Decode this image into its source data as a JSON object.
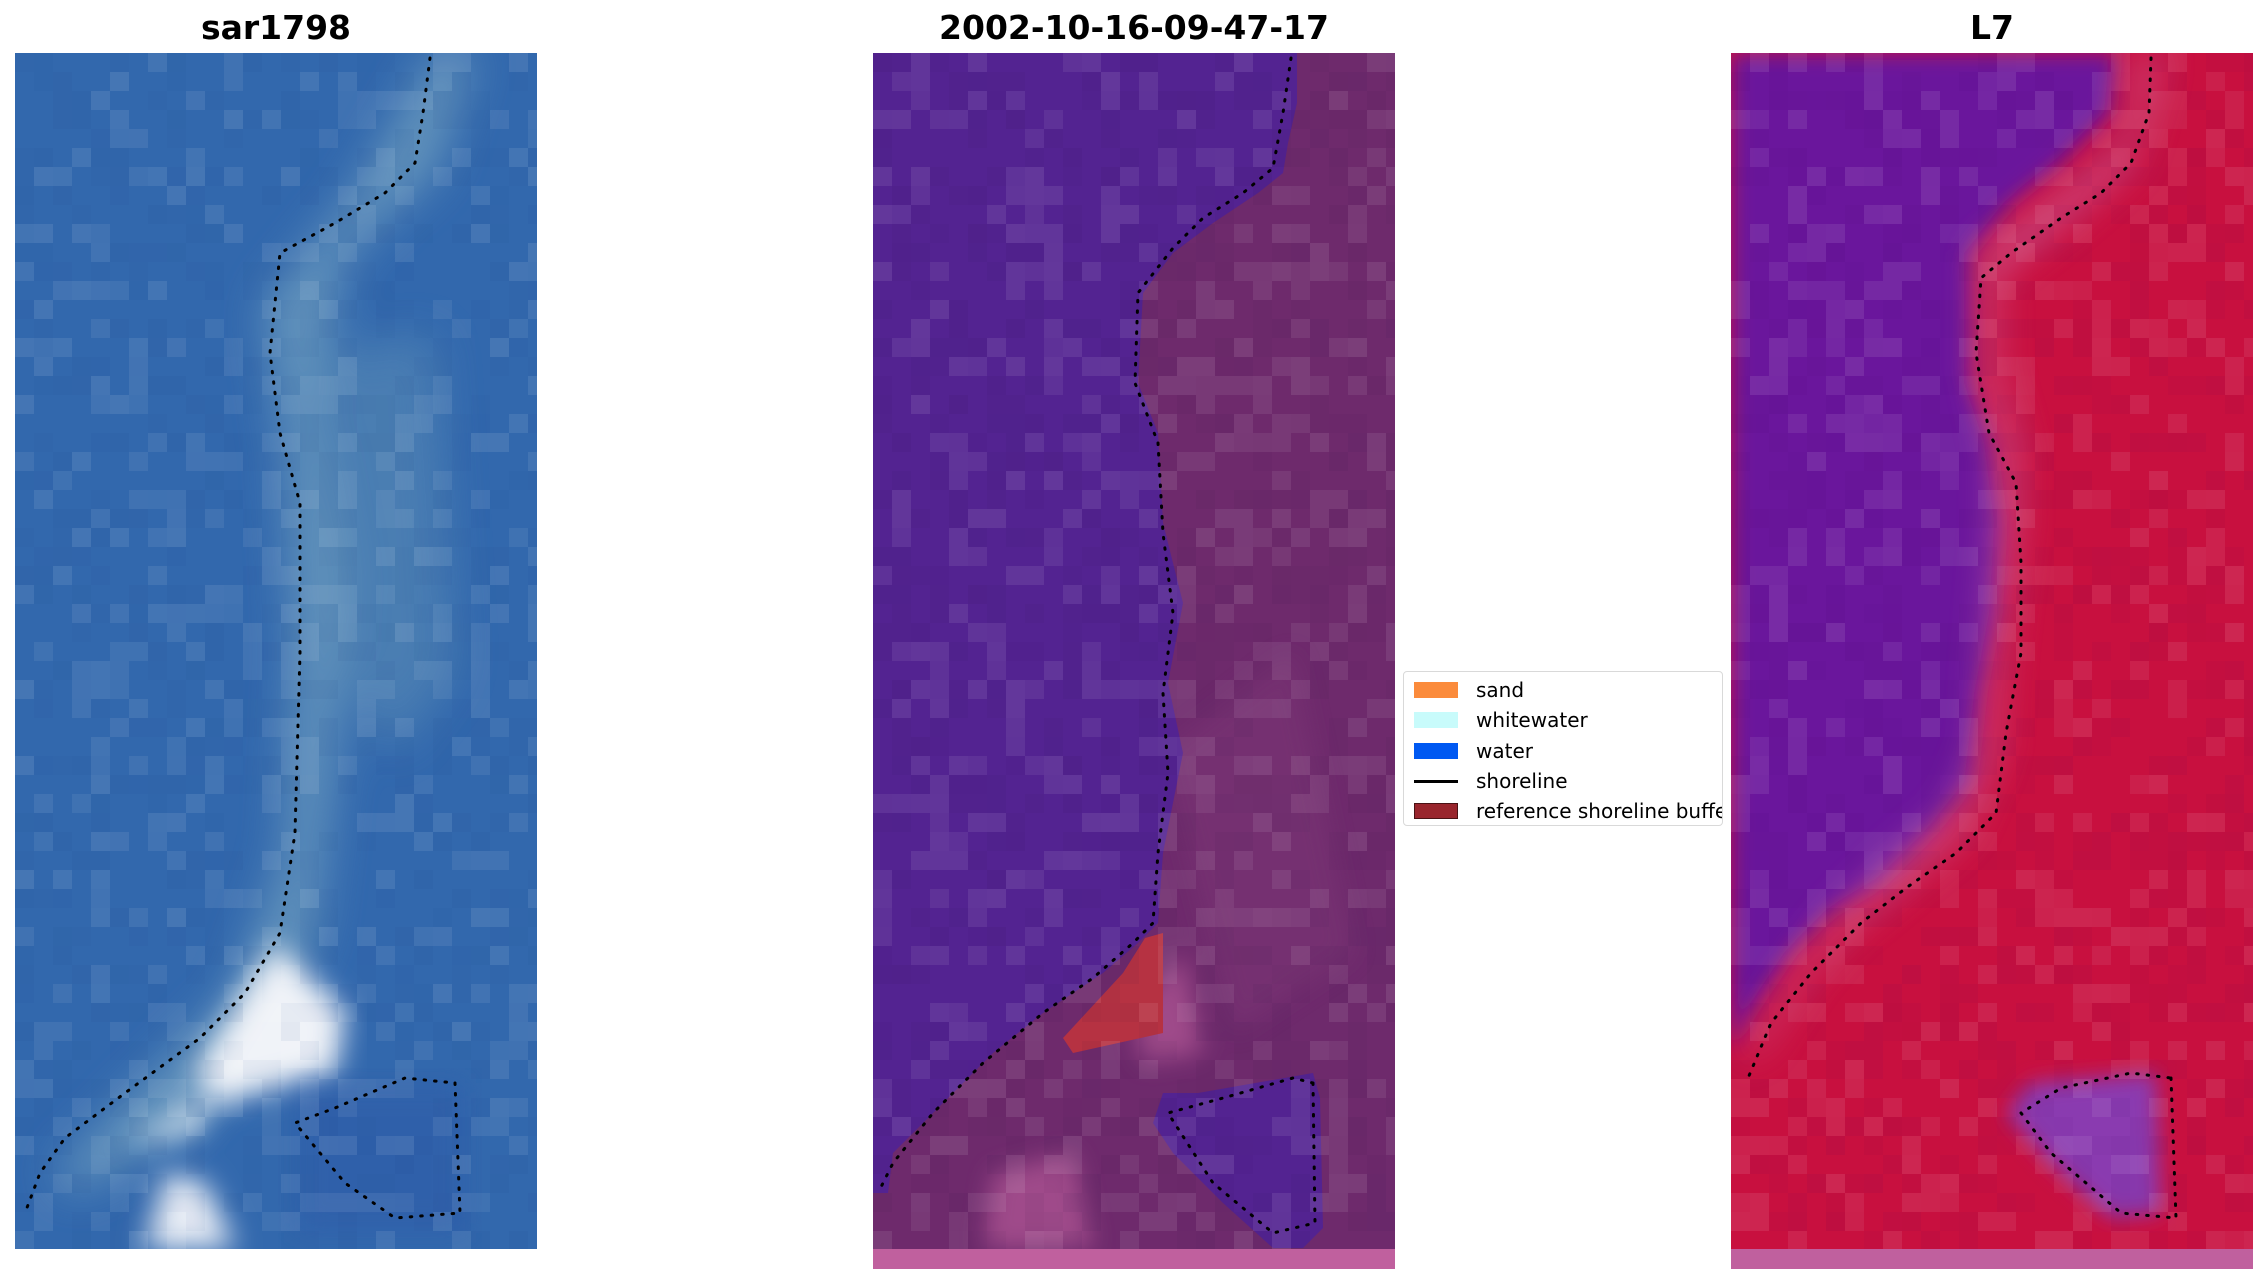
{
  "panels": [
    {
      "title": "sar1798"
    },
    {
      "title": "2002-10-16-09-47-17"
    },
    {
      "title": "L7"
    }
  ],
  "legend": {
    "items": [
      {
        "label": "sand",
        "color": "#fb8b3c"
      },
      {
        "label": "whitewater",
        "color": "#c8fbfb"
      },
      {
        "label": "water",
        "color": "#0059f2"
      },
      {
        "label": "shoreline",
        "color": "#000000"
      },
      {
        "label": "reference shoreline buffer",
        "color": "#99252d"
      }
    ]
  },
  "colors": {
    "rgb_water": "#3268ad",
    "rgb_surf": "#6d9dbf",
    "rgb_white": "#f0f3f8",
    "class_water": "#532391",
    "class_sand": "#6e2a6c",
    "class_buffer": "#b63242",
    "class_pink": "#c0609e",
    "index_water": "#6b129c",
    "index_land": "#c8103f",
    "index_edge": "#d06aa6"
  }
}
